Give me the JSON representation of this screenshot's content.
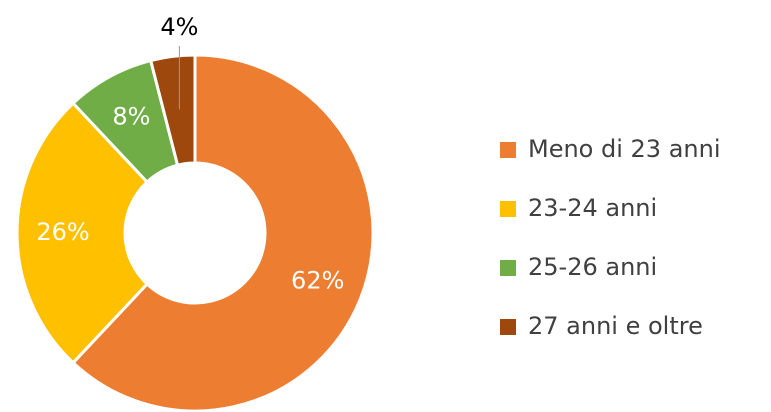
{
  "chart_data": {
    "type": "donut",
    "categories": [
      "Meno di 23 anni",
      "23-24 anni",
      "25-26 anni",
      "27 anni e oltre"
    ],
    "values": [
      62,
      26,
      8,
      4
    ],
    "value_labels": [
      "62%",
      "26%",
      "8%",
      "4%"
    ],
    "colors": [
      "#ed7d31",
      "#ffc000",
      "#70ad47",
      "#9e480e"
    ],
    "legend": "right"
  }
}
